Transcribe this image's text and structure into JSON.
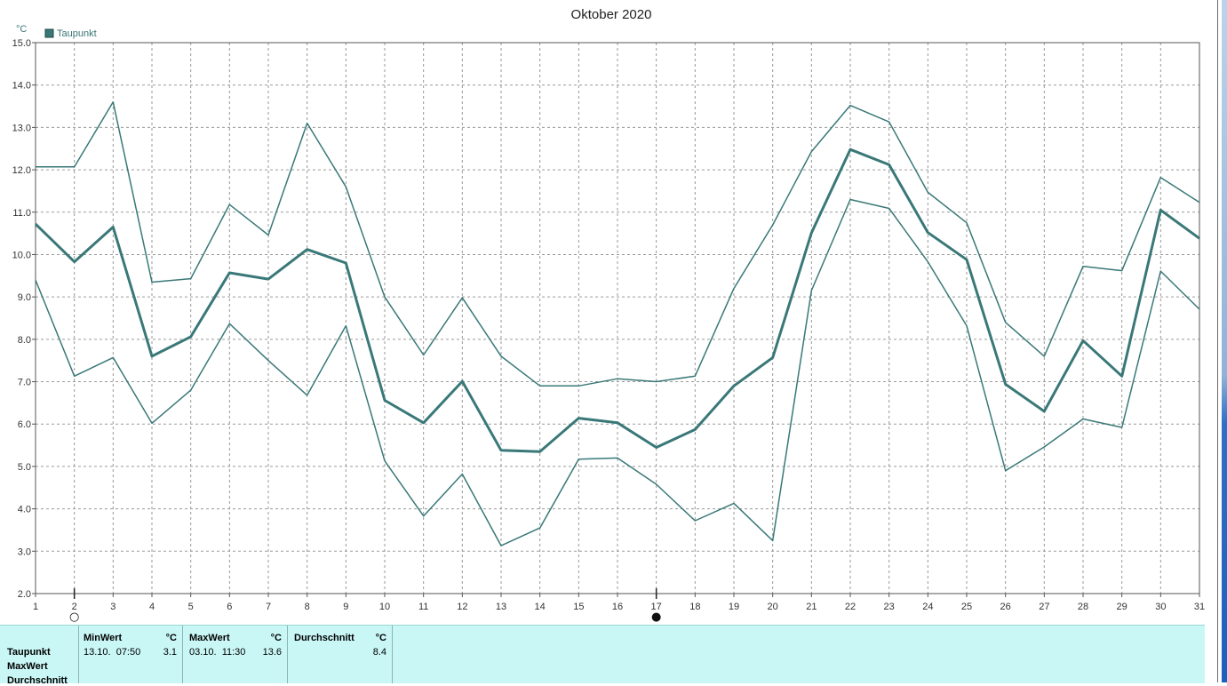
{
  "chart_data": {
    "type": "line",
    "title": "Oktober 2020",
    "ylabel": "°C",
    "ylim": [
      2.0,
      15.0
    ],
    "yticks": [
      "2.0",
      "3.0",
      "4.0",
      "5.0",
      "6.0",
      "7.0",
      "8.0",
      "9.0",
      "10.0",
      "11.0",
      "12.0",
      "13.0",
      "14.0",
      "15.0"
    ],
    "x": [
      1,
      2,
      3,
      4,
      5,
      6,
      7,
      8,
      9,
      10,
      11,
      12,
      13,
      14,
      15,
      16,
      17,
      18,
      19,
      20,
      21,
      22,
      23,
      24,
      25,
      26,
      27,
      28,
      29,
      30,
      31
    ],
    "legend": [
      "Taupunkt"
    ],
    "legend_position": "top-left",
    "grid": true,
    "line_color": "#3a7878",
    "series": [
      {
        "name": "Taupunkt",
        "role": "max",
        "width": 1.5,
        "values": [
          12.07,
          12.07,
          13.6,
          9.35,
          9.43,
          11.18,
          10.46,
          13.1,
          11.6,
          9.0,
          7.63,
          8.98,
          7.6,
          6.9,
          6.9,
          7.07,
          7.0,
          7.13,
          9.2,
          10.7,
          12.43,
          13.52,
          13.13,
          11.47,
          10.75,
          8.4,
          7.6,
          9.72,
          9.62,
          11.82,
          11.23
        ]
      },
      {
        "name": "Taupunkt",
        "role": "mean",
        "width": 3,
        "values": [
          10.72,
          9.83,
          10.65,
          7.6,
          8.06,
          9.57,
          9.42,
          10.12,
          9.8,
          6.56,
          6.03,
          7.01,
          5.38,
          5.35,
          6.14,
          6.03,
          5.45,
          5.87,
          6.9,
          7.57,
          10.51,
          12.48,
          12.12,
          10.52,
          9.88,
          6.94,
          6.3,
          7.97,
          7.13,
          11.05,
          10.38
        ]
      },
      {
        "name": "Taupunkt",
        "role": "min",
        "width": 1.5,
        "values": [
          9.4,
          7.13,
          7.57,
          6.02,
          6.8,
          8.37,
          7.5,
          6.68,
          8.32,
          5.13,
          3.83,
          4.82,
          3.13,
          3.55,
          5.17,
          5.2,
          4.58,
          3.72,
          4.13,
          3.25,
          9.15,
          11.3,
          11.09,
          9.83,
          8.32,
          4.9,
          5.46,
          6.12,
          5.92,
          9.61,
          8.71
        ]
      }
    ],
    "moon_markers": [
      {
        "day": 2,
        "symbol": "○"
      },
      {
        "day": 17,
        "symbol": "●"
      }
    ]
  },
  "stats": {
    "rows": [
      "Taupunkt",
      "MaxWert",
      "Durchschnitt"
    ],
    "columns": [
      {
        "header": "MinWert",
        "unit": "°C",
        "datetime": "13.10.  07:50",
        "value": "3.1"
      },
      {
        "header": "MaxWert",
        "unit": "°C",
        "datetime": "03.10.  11:30",
        "value": "13.6"
      },
      {
        "header": "Durchschnitt",
        "unit": "°C",
        "datetime": "",
        "value": "8.4"
      }
    ]
  }
}
